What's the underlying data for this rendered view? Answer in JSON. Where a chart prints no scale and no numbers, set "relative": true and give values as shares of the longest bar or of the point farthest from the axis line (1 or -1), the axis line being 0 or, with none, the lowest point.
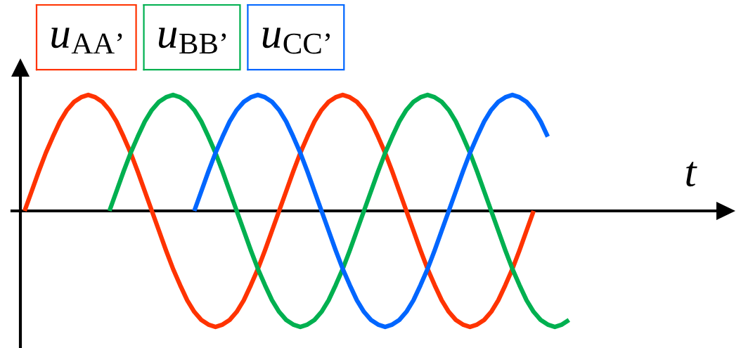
{
  "chart_data": {
    "type": "line",
    "relative": true,
    "xlabel": "t",
    "legend": "top left",
    "tick_labels": false,
    "line_style": "solid",
    "categories": [
      null,
      null,
      null,
      null,
      null,
      null,
      null,
      null,
      null,
      null,
      null,
      null,
      null,
      null,
      null,
      null,
      null,
      null,
      null,
      null,
      null,
      null,
      null,
      null,
      null,
      null,
      null,
      null,
      null,
      null,
      null,
      null,
      null,
      null,
      null,
      null,
      null,
      null,
      null,
      null,
      null,
      null,
      null,
      null,
      null,
      null,
      null,
      null,
      null,
      null,
      null,
      null,
      null,
      null,
      null,
      null,
      null,
      null,
      null,
      null,
      null,
      null,
      null,
      null,
      null,
      null,
      null,
      null,
      null,
      null,
      null,
      null,
      null,
      null,
      null,
      null,
      null,
      null
    ],
    "series": [
      {
        "name": "u$_{AA’}$",
        "color": "#ff3300",
        "values": [
          0,
          0.17,
          0.34,
          0.5,
          0.64,
          0.77,
          0.87,
          0.94,
          0.98,
          1,
          0.98,
          0.94,
          0.87,
          0.77,
          0.64,
          0.5,
          0.34,
          0.17,
          0,
          -0.17,
          -0.34,
          -0.5,
          -0.64,
          -0.77,
          -0.87,
          -0.94,
          -0.98,
          -1,
          -0.98,
          -0.94,
          -0.87,
          -0.77,
          -0.64,
          -0.5,
          -0.34,
          -0.17,
          0,
          0.17,
          0.34,
          0.5,
          0.64,
          0.77,
          0.87,
          0.94,
          0.98,
          1,
          0.98,
          0.94,
          0.87,
          0.77,
          0.64,
          0.5,
          0.34,
          0.17,
          0,
          -0.17,
          -0.34,
          -0.5,
          -0.64,
          -0.77,
          -0.87,
          -0.94,
          -0.98,
          -1,
          -0.98,
          -0.94,
          -0.87,
          -0.77,
          -0.64,
          -0.5,
          -0.34,
          -0.17,
          0,
          null,
          null,
          null,
          null,
          null
        ]
      },
      {
        "name": "u$_{BB’}$",
        "color": "#00b050",
        "values": [
          null,
          null,
          null,
          null,
          null,
          null,
          null,
          null,
          null,
          null,
          null,
          null,
          0,
          0.17,
          0.34,
          0.5,
          0.64,
          0.77,
          0.87,
          0.94,
          0.98,
          1,
          0.98,
          0.94,
          0.87,
          0.77,
          0.64,
          0.5,
          0.34,
          0.17,
          0,
          -0.17,
          -0.34,
          -0.5,
          -0.64,
          -0.77,
          -0.87,
          -0.94,
          -0.98,
          -1,
          -0.98,
          -0.94,
          -0.87,
          -0.77,
          -0.64,
          -0.5,
          -0.34,
          -0.17,
          0,
          0.17,
          0.34,
          0.5,
          0.64,
          0.77,
          0.87,
          0.94,
          0.98,
          1,
          0.98,
          0.94,
          0.87,
          0.77,
          0.64,
          0.5,
          0.34,
          0.17,
          0,
          -0.17,
          -0.34,
          -0.5,
          -0.64,
          -0.77,
          -0.87,
          -0.94,
          -0.98,
          -1,
          -0.98,
          -0.94
        ]
      },
      {
        "name": "u$_{CC’}$",
        "color": "#0066ff",
        "values": [
          null,
          null,
          null,
          null,
          null,
          null,
          null,
          null,
          null,
          null,
          null,
          null,
          null,
          null,
          null,
          null,
          null,
          null,
          null,
          null,
          null,
          null,
          null,
          null,
          0,
          0.17,
          0.34,
          0.5,
          0.64,
          0.77,
          0.87,
          0.94,
          0.98,
          1,
          0.98,
          0.94,
          0.87,
          0.77,
          0.64,
          0.5,
          0.34,
          0.17,
          0,
          -0.17,
          -0.34,
          -0.5,
          -0.64,
          -0.77,
          -0.87,
          -0.94,
          -0.98,
          -1,
          -0.98,
          -0.94,
          -0.87,
          -0.77,
          -0.64,
          -0.5,
          -0.34,
          -0.17,
          0,
          0.17,
          0.34,
          0.5,
          0.64,
          0.77,
          0.87,
          0.94,
          0.98,
          1,
          0.98,
          0.94,
          0.87,
          0.77,
          0.64,
          null,
          null,
          null
        ]
      }
    ]
  }
}
